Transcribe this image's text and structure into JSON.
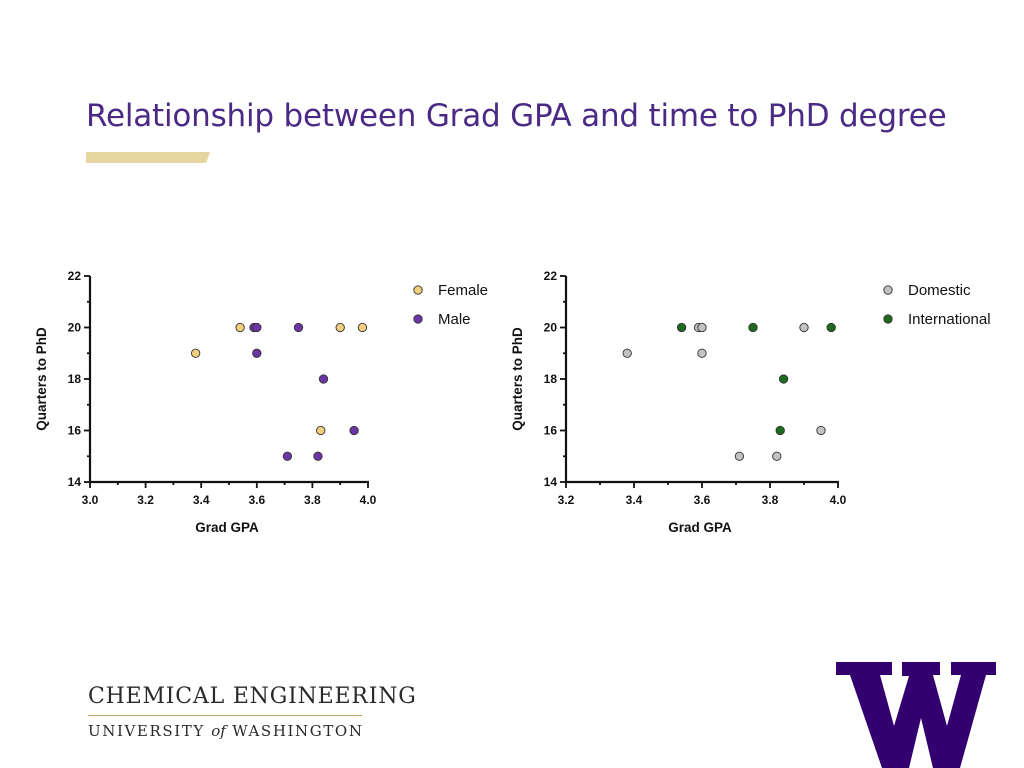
{
  "slide": {
    "title": "Relationship between Grad GPA and time to PhD degree"
  },
  "footer": {
    "department": "CHEMICAL ENGINEERING",
    "university_prefix": "UNIVERSITY",
    "university_of": "of",
    "university_suffix": "WASHINGTON"
  },
  "colors": {
    "title": "#4b2a85",
    "gold_accent": "#e6d5a0",
    "female": "#f2cf7e",
    "male": "#6b35a6",
    "domestic": "#c2c2c2",
    "international": "#1d6b1d"
  },
  "chart_data": [
    {
      "type": "scatter",
      "xlabel": "Grad GPA",
      "ylabel": "Quarters to PhD",
      "xlim": [
        3.0,
        4.0
      ],
      "ylim": [
        14,
        22
      ],
      "xticks": [
        "3.0",
        "3.2",
        "3.4",
        "3.6",
        "3.8",
        "4.0"
      ],
      "yticks": [
        "14",
        "16",
        "18",
        "20",
        "22"
      ],
      "legend_position": "top-right",
      "series": [
        {
          "name": "Female",
          "color": "#f2cf7e",
          "points": [
            [
              3.38,
              19
            ],
            [
              3.54,
              20
            ],
            [
              3.83,
              16
            ],
            [
              3.9,
              20
            ],
            [
              3.98,
              20
            ]
          ]
        },
        {
          "name": "Male",
          "color": "#6b35a6",
          "points": [
            [
              3.59,
              20
            ],
            [
              3.6,
              20
            ],
            [
              3.6,
              19
            ],
            [
              3.71,
              15
            ],
            [
              3.75,
              20
            ],
            [
              3.82,
              15
            ],
            [
              3.84,
              18
            ],
            [
              3.95,
              16
            ]
          ]
        }
      ]
    },
    {
      "type": "scatter",
      "xlabel": "Grad GPA",
      "ylabel": "Quarters to PhD",
      "xlim": [
        3.2,
        4.0
      ],
      "ylim": [
        14,
        22
      ],
      "xticks": [
        "3.2",
        "3.4",
        "3.6",
        "3.8",
        "4.0"
      ],
      "yticks": [
        "14",
        "16",
        "18",
        "20",
        "22"
      ],
      "legend_position": "top-right",
      "series": [
        {
          "name": "Domestic",
          "color": "#c2c2c2",
          "points": [
            [
              3.38,
              19
            ],
            [
              3.59,
              20
            ],
            [
              3.6,
              20
            ],
            [
              3.6,
              19
            ],
            [
              3.71,
              15
            ],
            [
              3.82,
              15
            ],
            [
              3.9,
              20
            ],
            [
              3.95,
              16
            ]
          ]
        },
        {
          "name": "International",
          "color": "#1d6b1d",
          "points": [
            [
              3.54,
              20
            ],
            [
              3.75,
              20
            ],
            [
              3.83,
              16
            ],
            [
              3.84,
              18
            ],
            [
              3.98,
              20
            ]
          ]
        }
      ]
    }
  ]
}
